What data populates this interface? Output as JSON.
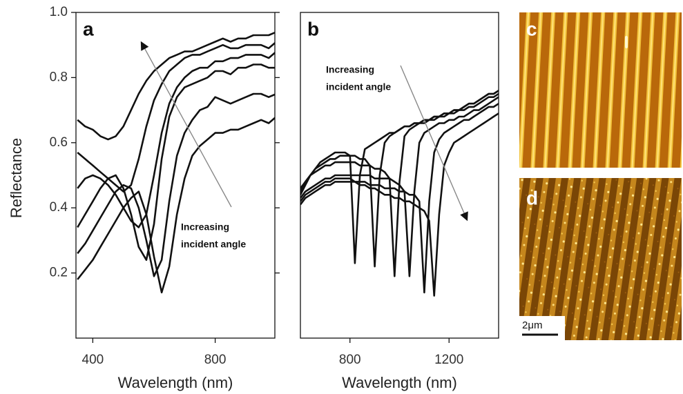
{
  "chart_data": [
    {
      "type": "line",
      "panel_label": "a",
      "y_label": "Reflectance",
      "x_label": "Wavelength (nm)",
      "annotation": [
        "Increasing",
        "incident angle"
      ],
      "xlim": [
        345,
        995
      ],
      "xticks": [
        400,
        800
      ],
      "ylim": [
        0,
        1
      ],
      "yticks": [
        0.2,
        0.4,
        0.6,
        0.8,
        {
          "value": 1,
          "label": "1.0"
        }
      ],
      "x": [
        350,
        375,
        400,
        425,
        450,
        475,
        500,
        525,
        550,
        575,
        600,
        625,
        650,
        675,
        700,
        725,
        750,
        775,
        800,
        825,
        850,
        875,
        900,
        925,
        950,
        975,
        1000
      ],
      "series": [
        {
          "color": "#111111",
          "values": [
            0.67,
            0.65,
            0.64,
            0.62,
            0.61,
            0.62,
            0.65,
            0.7,
            0.75,
            0.79,
            0.82,
            0.84,
            0.86,
            0.87,
            0.88,
            0.88,
            0.89,
            0.9,
            0.91,
            0.92,
            0.91,
            0.92,
            0.92,
            0.93,
            0.93,
            0.93,
            0.94
          ]
        },
        {
          "color": "#111111",
          "values": [
            0.57,
            0.55,
            0.53,
            0.51,
            0.49,
            0.47,
            0.45,
            0.47,
            0.55,
            0.65,
            0.73,
            0.78,
            0.82,
            0.84,
            0.86,
            0.87,
            0.87,
            0.88,
            0.89,
            0.9,
            0.89,
            0.89,
            0.9,
            0.9,
            0.9,
            0.89,
            0.91
          ]
        },
        {
          "color": "#111111",
          "values": [
            0.46,
            0.49,
            0.5,
            0.49,
            0.47,
            0.44,
            0.4,
            0.36,
            0.34,
            0.38,
            0.5,
            0.63,
            0.72,
            0.77,
            0.8,
            0.82,
            0.83,
            0.83,
            0.85,
            0.85,
            0.86,
            0.86,
            0.87,
            0.87,
            0.87,
            0.86,
            0.88
          ]
        },
        {
          "color": "#111111",
          "values": [
            0.34,
            0.38,
            0.42,
            0.46,
            0.49,
            0.5,
            0.46,
            0.38,
            0.28,
            0.24,
            0.35,
            0.55,
            0.68,
            0.74,
            0.77,
            0.78,
            0.79,
            0.8,
            0.82,
            0.82,
            0.81,
            0.83,
            0.83,
            0.84,
            0.84,
            0.83,
            0.83
          ]
        },
        {
          "color": "#111111",
          "values": [
            0.26,
            0.29,
            0.33,
            0.37,
            0.41,
            0.45,
            0.47,
            0.46,
            0.4,
            0.3,
            0.19,
            0.24,
            0.42,
            0.56,
            0.63,
            0.67,
            0.7,
            0.71,
            0.74,
            0.73,
            0.72,
            0.73,
            0.74,
            0.75,
            0.75,
            0.74,
            0.75
          ]
        },
        {
          "color": "#111111",
          "values": [
            0.18,
            0.21,
            0.24,
            0.28,
            0.32,
            0.36,
            0.4,
            0.43,
            0.45,
            0.38,
            0.25,
            0.14,
            0.22,
            0.38,
            0.49,
            0.56,
            0.59,
            0.61,
            0.63,
            0.63,
            0.64,
            0.64,
            0.65,
            0.66,
            0.67,
            0.66,
            0.68
          ]
        }
      ]
    },
    {
      "type": "line",
      "panel_label": "b",
      "x_label": "Wavelength (nm)",
      "annotation": [
        "Increasing",
        "incident angle"
      ],
      "xlim": [
        600,
        1400
      ],
      "xticks": [
        800,
        1200
      ],
      "ylim": [
        0,
        1
      ],
      "x": [
        600,
        620,
        640,
        660,
        680,
        700,
        720,
        740,
        760,
        780,
        800,
        820,
        840,
        860,
        880,
        900,
        920,
        940,
        960,
        980,
        1000,
        1020,
        1040,
        1060,
        1080,
        1100,
        1120,
        1140,
        1160,
        1180,
        1200,
        1220,
        1240,
        1260,
        1280,
        1300,
        1320,
        1340,
        1360,
        1380,
        1400
      ],
      "series": [
        {
          "color": "#111111",
          "values": [
            0.44,
            0.47,
            0.5,
            0.52,
            0.54,
            0.55,
            0.56,
            0.57,
            0.57,
            0.57,
            0.56,
            0.23,
            0.5,
            0.58,
            0.59,
            0.6,
            0.61,
            0.62,
            0.63,
            0.63,
            0.64,
            0.65,
            0.65,
            0.66,
            0.66,
            0.67,
            0.67,
            0.68,
            0.68,
            0.69,
            0.69,
            0.7,
            0.7,
            0.71,
            0.72,
            0.72,
            0.73,
            0.74,
            0.75,
            0.75,
            0.76
          ]
        },
        {
          "color": "#111111",
          "values": [
            0.45,
            0.48,
            0.5,
            0.52,
            0.53,
            0.54,
            0.55,
            0.55,
            0.56,
            0.56,
            0.56,
            0.56,
            0.55,
            0.55,
            0.53,
            0.22,
            0.5,
            0.6,
            0.62,
            0.63,
            0.64,
            0.65,
            0.65,
            0.66,
            0.66,
            0.67,
            0.67,
            0.68,
            0.68,
            0.69,
            0.69,
            0.7,
            0.7,
            0.71,
            0.72,
            0.72,
            0.73,
            0.74,
            0.75,
            0.75,
            0.76
          ]
        },
        {
          "color": "#111111",
          "values": [
            0.46,
            0.48,
            0.5,
            0.51,
            0.52,
            0.53,
            0.53,
            0.54,
            0.54,
            0.54,
            0.54,
            0.54,
            0.53,
            0.53,
            0.53,
            0.52,
            0.52,
            0.51,
            0.49,
            0.19,
            0.48,
            0.62,
            0.64,
            0.65,
            0.66,
            0.66,
            0.67,
            0.67,
            0.68,
            0.68,
            0.69,
            0.69,
            0.7,
            0.7,
            0.71,
            0.71,
            0.72,
            0.73,
            0.74,
            0.74,
            0.75
          ]
        },
        {
          "color": "#111111",
          "values": [
            0.43,
            0.45,
            0.46,
            0.47,
            0.48,
            0.49,
            0.49,
            0.5,
            0.5,
            0.5,
            0.5,
            0.5,
            0.5,
            0.5,
            0.5,
            0.49,
            0.49,
            0.49,
            0.49,
            0.48,
            0.47,
            0.45,
            0.19,
            0.45,
            0.6,
            0.63,
            0.64,
            0.65,
            0.66,
            0.66,
            0.67,
            0.67,
            0.68,
            0.68,
            0.69,
            0.7,
            0.7,
            0.71,
            0.72,
            0.73,
            0.74
          ]
        },
        {
          "color": "#111111",
          "values": [
            0.42,
            0.44,
            0.45,
            0.46,
            0.47,
            0.48,
            0.48,
            0.49,
            0.49,
            0.49,
            0.49,
            0.48,
            0.48,
            0.48,
            0.47,
            0.47,
            0.47,
            0.46,
            0.46,
            0.46,
            0.45,
            0.45,
            0.44,
            0.44,
            0.42,
            0.14,
            0.42,
            0.57,
            0.61,
            0.63,
            0.64,
            0.65,
            0.66,
            0.67,
            0.67,
            0.68,
            0.69,
            0.7,
            0.71,
            0.71,
            0.72
          ]
        },
        {
          "color": "#111111",
          "values": [
            0.41,
            0.43,
            0.44,
            0.45,
            0.46,
            0.47,
            0.47,
            0.48,
            0.48,
            0.48,
            0.48,
            0.48,
            0.47,
            0.47,
            0.46,
            0.46,
            0.45,
            0.44,
            0.44,
            0.43,
            0.43,
            0.42,
            0.42,
            0.41,
            0.4,
            0.39,
            0.36,
            0.13,
            0.38,
            0.53,
            0.57,
            0.6,
            0.61,
            0.62,
            0.63,
            0.64,
            0.65,
            0.66,
            0.67,
            0.68,
            0.69
          ]
        }
      ]
    }
  ],
  "images": [
    {
      "label": "c"
    },
    {
      "label": "d",
      "scale_bar": "2μm"
    }
  ]
}
